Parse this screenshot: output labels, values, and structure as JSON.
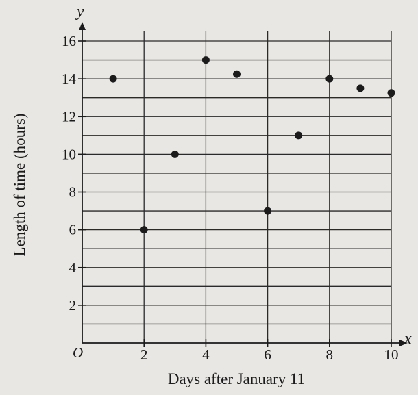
{
  "chart_data": {
    "type": "scatter",
    "xlabel": "Days after January 11",
    "ylabel": "Length of time (hours)",
    "x_axis_letter": "x",
    "y_axis_letter": "y",
    "origin_label": "O",
    "xlim": [
      0,
      10
    ],
    "ylim": [
      0,
      16
    ],
    "x_ticks": [
      2,
      4,
      6,
      8,
      10
    ],
    "y_ticks": [
      2,
      4,
      6,
      8,
      10,
      12,
      14,
      16
    ],
    "x_minor_step": 1,
    "y_minor_step": 1,
    "grid": true,
    "points": [
      {
        "x": 1,
        "y": 14
      },
      {
        "x": 2,
        "y": 6
      },
      {
        "x": 3,
        "y": 10
      },
      {
        "x": 4,
        "y": 15
      },
      {
        "x": 5,
        "y": 14.25
      },
      {
        "x": 6,
        "y": 7
      },
      {
        "x": 7,
        "y": 11
      },
      {
        "x": 8,
        "y": 14
      },
      {
        "x": 9,
        "y": 13.5
      },
      {
        "x": 10,
        "y": 13.25
      }
    ],
    "colors": {
      "background": "#e9e7e3",
      "ink": "#1b1b1b",
      "grid": "#2a2a2a"
    }
  }
}
